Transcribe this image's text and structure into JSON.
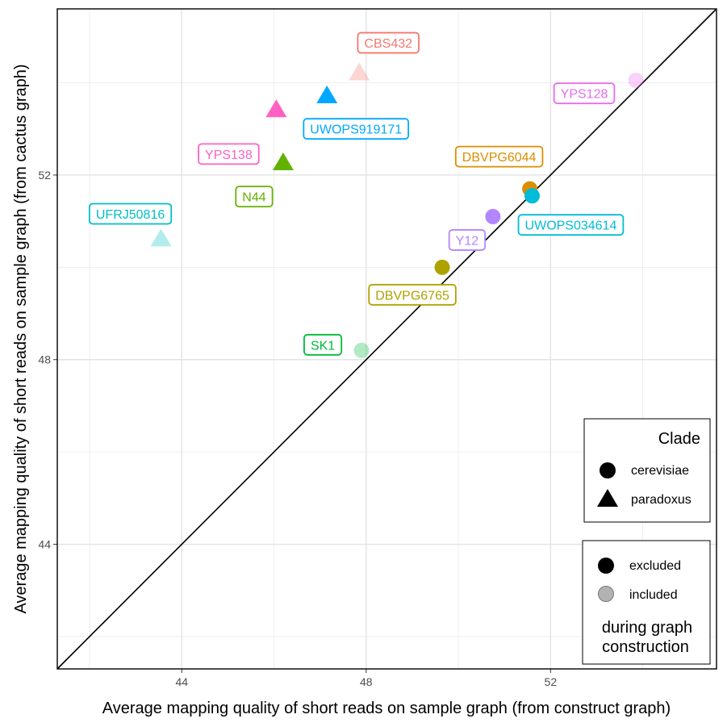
{
  "chart_data": {
    "type": "scatter",
    "title": "",
    "xlabel": "Average mapping quality of short reads on sample graph (from construct graph)",
    "ylabel": "Average mapping quality of short reads on sample graph (from cactus graph)",
    "xlim": [
      41.3,
      55.6
    ],
    "ylim": [
      41.3,
      55.6
    ],
    "x_ticks": [
      44,
      48,
      52
    ],
    "y_ticks": [
      44,
      48,
      52
    ],
    "grid": true,
    "reference_line": "y = x",
    "points": [
      {
        "label": "CBS432",
        "x": 47.85,
        "y": 54.2,
        "clade": "paradoxus",
        "status": "included",
        "color": "#F8766D"
      },
      {
        "label": "UWOPS919171",
        "x": 47.15,
        "y": 53.7,
        "clade": "paradoxus",
        "status": "excluded",
        "color": "#00A9FF"
      },
      {
        "label": "YPS138",
        "x": 46.05,
        "y": 53.4,
        "clade": "paradoxus",
        "status": "excluded",
        "color": "#FF61C3"
      },
      {
        "label": "N44",
        "x": 46.2,
        "y": 52.25,
        "clade": "paradoxus",
        "status": "excluded",
        "color": "#64B200"
      },
      {
        "label": "UFRJ50816",
        "x": 43.55,
        "y": 50.6,
        "clade": "paradoxus",
        "status": "included",
        "color": "#00BFC4"
      },
      {
        "label": "YPS128",
        "x": 53.85,
        "y": 54.05,
        "clade": "cerevisiae",
        "status": "included",
        "color": "#E76BF3"
      },
      {
        "label": "DBVPG6044",
        "x": 51.55,
        "y": 51.7,
        "clade": "cerevisiae",
        "status": "excluded",
        "color": "#DB8E00"
      },
      {
        "label": "UWOPS034614",
        "x": 51.6,
        "y": 51.55,
        "clade": "cerevisiae",
        "status": "excluded",
        "color": "#00BCD8"
      },
      {
        "label": "Y12",
        "x": 50.75,
        "y": 51.1,
        "clade": "cerevisiae",
        "status": "excluded",
        "color": "#B385FF"
      },
      {
        "label": "DBVPG6765",
        "x": 49.65,
        "y": 50.0,
        "clade": "cerevisiae",
        "status": "excluded",
        "color": "#AEA200"
      },
      {
        "label": "SK1",
        "x": 47.9,
        "y": 48.2,
        "clade": "cerevisiae",
        "status": "included",
        "color": "#00BA38"
      }
    ],
    "legend": {
      "clade": {
        "title": "Clade",
        "items": [
          {
            "label": "cerevisiae",
            "shape": "circle"
          },
          {
            "label": "paradoxus",
            "shape": "triangle"
          }
        ]
      },
      "status": {
        "items": [
          {
            "label": "excluded",
            "alpha": 1.0
          },
          {
            "label": "included",
            "alpha": 0.3
          }
        ],
        "footer_line1": "during graph",
        "footer_line2": "construction"
      },
      "placement": "right-inside"
    }
  }
}
